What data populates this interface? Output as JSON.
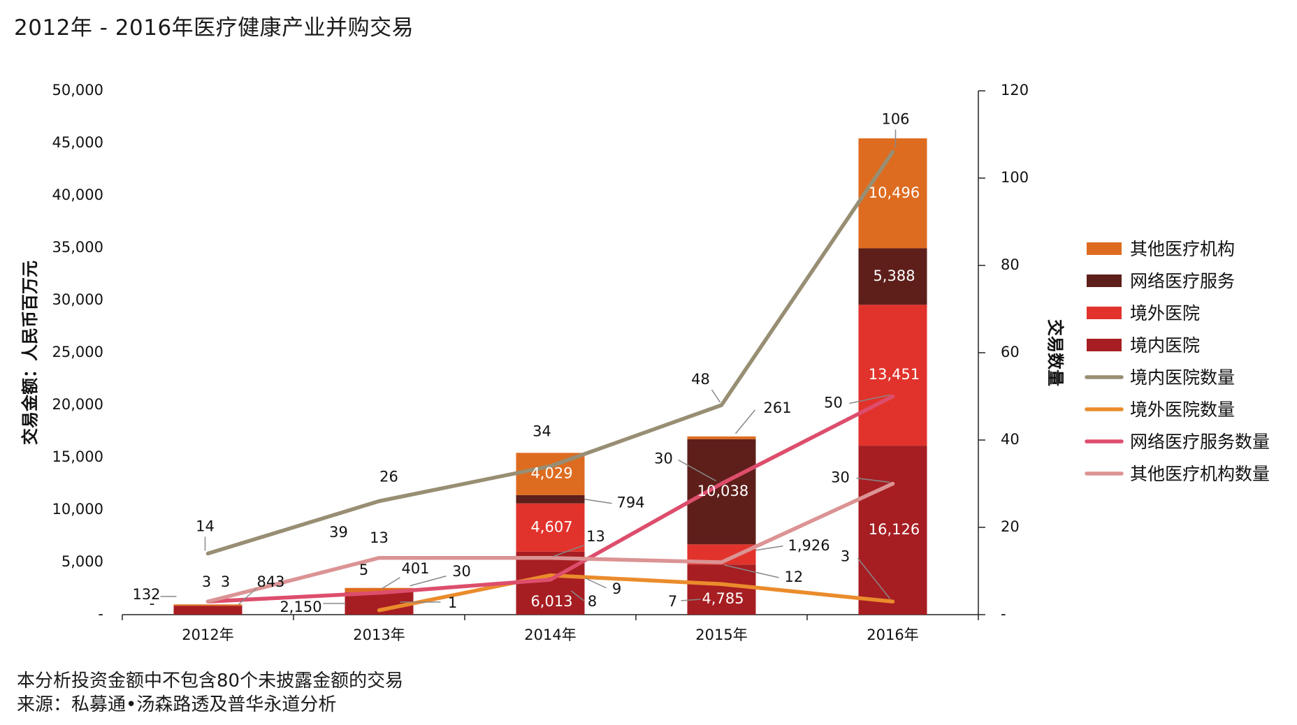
{
  "title": "2012年 - 2016年医疗健康产业并购交易",
  "footnote": {
    "line1": "本分析投资金额中不包含80个未披露金额的交易",
    "line2": "来源：私募通•汤森路透及普华永道分析"
  },
  "chart_data": {
    "type": "bar",
    "stacked": true,
    "categories": [
      "2012年",
      "2013年",
      "2014年",
      "2015年",
      "2016年"
    ],
    "y_left": {
      "label": "交易金额：人民币百万元",
      "lim": [
        0,
        50000
      ],
      "ticks": [
        "-",
        "5,000",
        "10,000",
        "15,000",
        "20,000",
        "25,000",
        "30,000",
        "35,000",
        "40,000",
        "45,000",
        "50,000"
      ]
    },
    "y_right": {
      "label": "交易数量",
      "lim": [
        0,
        120
      ],
      "ticks": [
        "-",
        "20",
        "40",
        "60",
        "80",
        "100",
        "120"
      ]
    },
    "bar_series": [
      {
        "name": "境内医院",
        "color": "#a61e22",
        "values": [
          843,
          2150,
          6013,
          4785,
          16126
        ],
        "labels": [
          "843",
          "2,150",
          "6,013",
          "4,785",
          "16,126"
        ]
      },
      {
        "name": "境外医院",
        "color": "#e1322b",
        "values": [
          0,
          0,
          4607,
          1926,
          13451
        ],
        "labels": [
          "",
          "",
          "4,607",
          "1,926",
          "13,451"
        ]
      },
      {
        "name": "网络医疗服务",
        "color": "#5e1e1a",
        "values": [
          0,
          0,
          794,
          10038,
          5388
        ],
        "labels": [
          "",
          "",
          "794",
          "10,038",
          "5,388"
        ]
      },
      {
        "name": "其他医疗机构",
        "color": "#dd6b20",
        "values": [
          132,
          401,
          4029,
          261,
          10496
        ],
        "labels": [
          "132",
          "401",
          "4,029",
          "261",
          "10,496"
        ]
      }
    ],
    "line_series": [
      {
        "name": "境内医院数量",
        "color": "#978e74",
        "values": [
          14,
          26,
          34,
          48,
          106
        ]
      },
      {
        "name": "境外医院数量",
        "color": "#ea8b2c",
        "values": [
          null,
          1,
          9,
          7,
          3
        ]
      },
      {
        "name": "网络医疗服务数量",
        "color": "#dd4d6c",
        "values": [
          3,
          5,
          8,
          30,
          50
        ]
      },
      {
        "name": "其他医疗机构数量",
        "color": "#dc9393",
        "values": [
          3,
          13,
          13,
          12,
          30
        ]
      }
    ],
    "legend": [
      "其他医疗机构",
      "网络医疗服务",
      "境外医院",
      "境内医院",
      "境内医院数量",
      "境外医院数量",
      "网络医疗服务数量",
      "其他医疗机构数量"
    ],
    "legend_position": "right",
    "annotations": [
      "-",
      "132",
      "3",
      "3",
      "843",
      "39",
      "5",
      "401",
      "30",
      "2,150",
      "1",
      "26",
      "14",
      "34",
      "13",
      "9",
      "8",
      "48",
      "30",
      "261",
      "12",
      "7",
      "106",
      "50",
      "30",
      "3"
    ]
  }
}
